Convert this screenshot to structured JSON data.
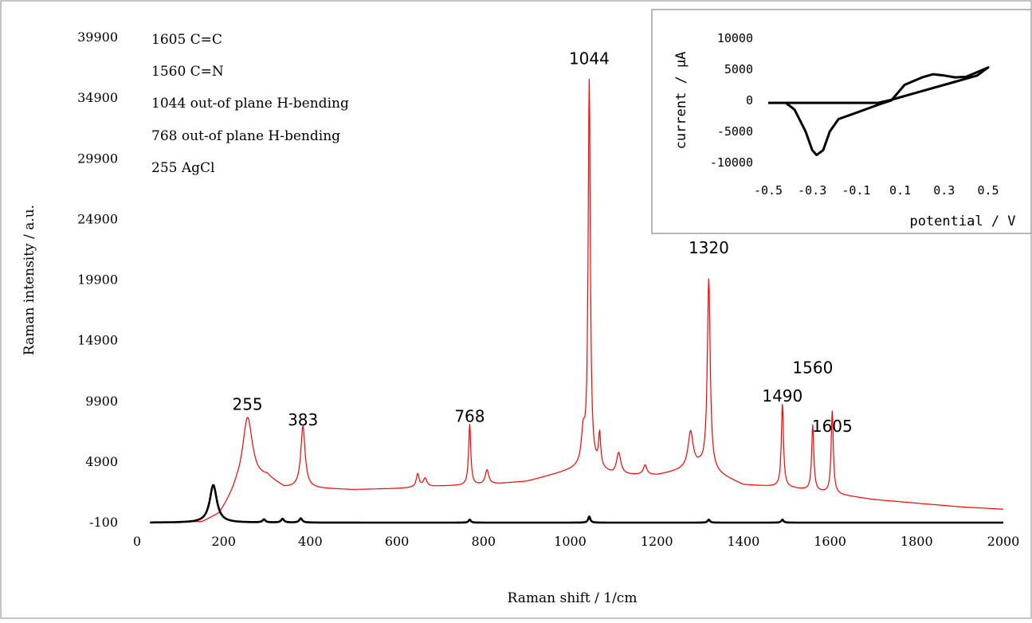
{
  "chart_data": [
    {
      "type": "line",
      "xlabel": "Raman shift / 1/cm",
      "ylabel": "Raman intensity / a.u.",
      "xlim": [
        0,
        2000
      ],
      "ylim": [
        -100,
        39900
      ],
      "x_ticks": [
        0,
        200,
        400,
        600,
        800,
        1000,
        1200,
        1400,
        1600,
        1800,
        2000
      ],
      "y_ticks": [
        -100,
        4900,
        9900,
        14900,
        19900,
        24900,
        29900,
        34900,
        39900
      ],
      "grid": false,
      "annotations": [
        "1605 C=C",
        "1560 C=N",
        "1044  out-of  plane  H-bending",
        "768 out-of plane H-bending",
        "255 AgCl"
      ],
      "peak_labels": [
        {
          "text": "255",
          "x": 255,
          "y": 9200
        },
        {
          "text": "383",
          "x": 383,
          "y": 7900
        },
        {
          "text": "768",
          "x": 768,
          "y": 8200
        },
        {
          "text": "1044",
          "x": 1044,
          "y": 37700
        },
        {
          "text": "1320",
          "x": 1320,
          "y": 22100
        },
        {
          "text": "1490",
          "x": 1490,
          "y": 9900
        },
        {
          "text": "1560",
          "x": 1560,
          "y": 12200
        },
        {
          "text": "1605",
          "x": 1605,
          "y": 7400
        }
      ],
      "series": [
        {
          "color": "#ff0000",
          "baseline": [
            [
              30,
              -100
            ],
            [
              150,
              -100
            ],
            [
              190,
              500
            ],
            [
              230,
              2500
            ],
            [
              300,
              3500
            ],
            [
              340,
              2700
            ],
            [
              400,
              2700
            ],
            [
              500,
              2600
            ],
            [
              600,
              2700
            ],
            [
              700,
              2900
            ],
            [
              800,
              3000
            ],
            [
              900,
              3300
            ],
            [
              1000,
              4200
            ],
            [
              1044,
              4600
            ],
            [
              1100,
              3800
            ],
            [
              1200,
              3800
            ],
            [
              1300,
              4500
            ],
            [
              1400,
              3000
            ],
            [
              1500,
              2800
            ],
            [
              1600,
              2300
            ],
            [
              1700,
              1800
            ],
            [
              1800,
              1500
            ],
            [
              1900,
              1200
            ],
            [
              2000,
              1000
            ]
          ],
          "peaks": [
            [
              255,
              5700,
              14
            ],
            [
              383,
              5100,
              6
            ],
            [
              648,
              1100,
              4
            ],
            [
              665,
              700,
              5
            ],
            [
              768,
              5000,
              3
            ],
            [
              808,
              1200,
              5
            ],
            [
              1030,
              2500,
              5
            ],
            [
              1044,
              31500,
              3
            ],
            [
              1068,
              2700,
              3
            ],
            [
              1112,
              1800,
              6
            ],
            [
              1173,
              800,
              5
            ],
            [
              1278,
              3000,
              7
            ],
            [
              1320,
              15700,
              4
            ],
            [
              1490,
              6800,
              3
            ],
            [
              1560,
              5400,
              3
            ],
            [
              1605,
              6800,
              3
            ]
          ]
        },
        {
          "color": "#000000",
          "baseline": [
            [
              30,
              -100
            ],
            [
              2000,
              -100
            ]
          ],
          "peaks": [
            [
              176,
              3100,
              10
            ],
            [
              293,
              250,
              4
            ],
            [
              336,
              300,
              4
            ],
            [
              378,
              350,
              4
            ],
            [
              768,
              250,
              3
            ],
            [
              1044,
              500,
              3
            ],
            [
              1320,
              250,
              3
            ],
            [
              1490,
              250,
              3
            ]
          ]
        }
      ]
    },
    {
      "type": "line",
      "xlabel": "potential / V",
      "ylabel": "current / μA",
      "xlim": [
        -0.5,
        0.5
      ],
      "ylim": [
        -10000,
        10000
      ],
      "x_ticks": [
        "-0.5",
        "-0.3",
        "-0.1",
        "0.1",
        "0.3",
        "0.5"
      ],
      "y_ticks": [
        "10000",
        "5000",
        "0",
        "-5000",
        "-10000"
      ],
      "grid": false,
      "series": [
        {
          "color": "#000000",
          "points": [
            [
              -0.5,
              -400
            ],
            [
              -0.42,
              -400
            ],
            [
              -0.38,
              -1500
            ],
            [
              -0.33,
              -5000
            ],
            [
              -0.3,
              -8000
            ],
            [
              -0.28,
              -8800
            ],
            [
              -0.25,
              -8000
            ],
            [
              -0.22,
              -5000
            ],
            [
              -0.18,
              -3000
            ],
            [
              -0.1,
              -2000
            ],
            [
              0.0,
              -700
            ],
            [
              0.06,
              0
            ],
            [
              0.12,
              2500
            ],
            [
              0.2,
              3700
            ],
            [
              0.25,
              4200
            ],
            [
              0.3,
              4000
            ],
            [
              0.35,
              3700
            ],
            [
              0.4,
              3800
            ],
            [
              0.5,
              5300
            ],
            [
              0.45,
              4000
            ],
            [
              0.3,
              2500
            ],
            [
              0.15,
              1000
            ],
            [
              0.05,
              0
            ],
            [
              0.0,
              -400
            ],
            [
              -0.5,
              -400
            ]
          ]
        }
      ]
    }
  ]
}
